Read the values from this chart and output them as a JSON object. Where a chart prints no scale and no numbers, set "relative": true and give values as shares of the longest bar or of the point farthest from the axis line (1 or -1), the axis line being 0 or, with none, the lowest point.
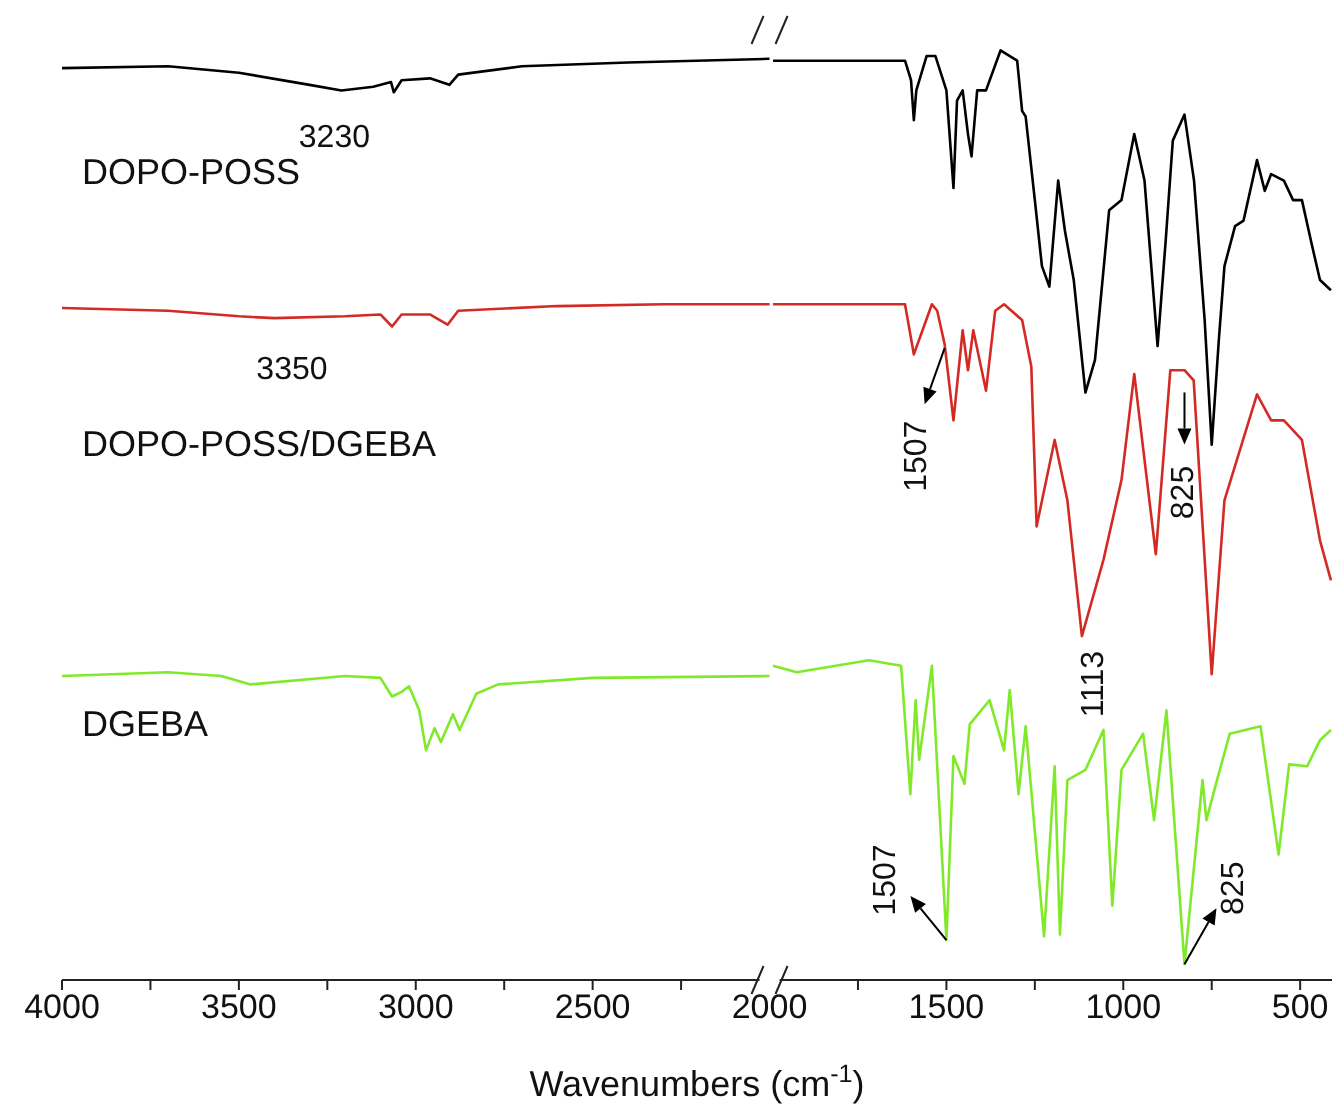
{
  "chart_data": {
    "type": "line",
    "xlabel": "Wavenumbers (cm$^{-1}$)",
    "relative": true,
    "tick_labels": "x",
    "marker": "none",
    "line_style": "solid",
    "xlim": [
      4000,
      410
    ],
    "xticks": [
      4000,
      {
        "value": 3750,
        "label": null
      },
      3500,
      {
        "value": 3250,
        "label": null
      },
      3000,
      {
        "value": 2750,
        "label": null
      },
      2500,
      {
        "value": 2250,
        "label": null
      },
      2000,
      {
        "value": 1750,
        "label": null
      },
      1500,
      {
        "value": 1250,
        "label": null
      },
      1000,
      {
        "value": 750,
        "label": null
      },
      500
    ],
    "series": [
      {
        "name": "DOPO-POSS",
        "color": "#000000",
        "x": [
          4000,
          3700,
          3500,
          3300,
          3210,
          3120,
          3070,
          3062,
          3040,
          2960,
          2905,
          2880,
          2700,
          2400,
          2000,
          1995,
          1990,
          1617,
          1600,
          1592,
          1585,
          1556,
          1531,
          1500,
          1480,
          1470,
          1454,
          1439,
          1429,
          1413,
          1388,
          1347,
          1300,
          1286,
          1276,
          1250,
          1230,
          1209,
          1184,
          1165,
          1140,
          1107,
          1080,
          1040,
          1005,
          969,
          940,
          903,
          880,
          860,
          827,
          800,
          770,
          750,
          730,
          714,
          684,
          660,
          622,
          600,
          582,
          546,
          520,
          495,
          470,
          444,
          413
        ],
        "values": [
          0.981,
          0.983,
          0.976,
          0.963,
          0.957,
          0.961,
          0.966,
          0.955,
          0.968,
          0.97,
          0.963,
          0.974,
          0.983,
          0.987,
          0.991,
          null,
          0.989,
          0.989,
          0.968,
          0.925,
          0.957,
          0.994,
          0.994,
          0.957,
          0.852,
          0.946,
          0.957,
          0.91,
          0.886,
          0.957,
          0.957,
          1.0,
          0.989,
          0.935,
          0.929,
          0.839,
          0.768,
          0.746,
          0.86,
          0.806,
          0.753,
          0.632,
          0.667,
          0.828,
          0.839,
          0.91,
          0.86,
          0.682,
          0.796,
          0.903,
          0.931,
          0.86,
          0.71,
          0.576,
          0.688,
          0.768,
          0.811,
          0.817,
          0.882,
          0.849,
          0.867,
          0.86,
          0.839,
          0.839,
          0.796,
          0.753,
          0.742
        ]
      },
      {
        "name": "DOPO-POSS/DGEBA",
        "color": "#d42a24",
        "x": [
          4000,
          3700,
          3500,
          3400,
          3200,
          3100,
          3067,
          3040,
          2960,
          2910,
          2880,
          2600,
          2300,
          2000,
          1995,
          1990,
          1617,
          1592,
          1541,
          1526,
          1505,
          1480,
          1454,
          1439,
          1424,
          1388,
          1362,
          1337,
          1286,
          1260,
          1245,
          1194,
          1158,
          1117,
          1056,
          1005,
          969,
          908,
          867,
          827,
          801,
          750,
          714,
          622,
          582,
          546,
          495,
          444,
          413
        ],
        "values": [
          0.723,
          0.72,
          0.714,
          0.712,
          0.714,
          0.716,
          0.703,
          0.716,
          0.716,
          0.705,
          0.72,
          0.725,
          0.727,
          0.727,
          null,
          0.727,
          0.727,
          0.673,
          0.727,
          0.72,
          0.684,
          0.602,
          0.699,
          0.656,
          0.699,
          0.634,
          0.72,
          0.727,
          0.71,
          0.66,
          0.488,
          0.581,
          0.516,
          0.37,
          0.452,
          0.538,
          0.652,
          0.458,
          0.656,
          0.656,
          0.645,
          0.329,
          0.516,
          0.63,
          0.602,
          0.602,
          0.581,
          0.473,
          0.43
        ]
      },
      {
        "name": "DGEBA",
        "color": "#80ea2a",
        "x": [
          4000,
          3700,
          3550,
          3467,
          3200,
          3100,
          3067,
          3040,
          3019,
          2990,
          2971,
          2947,
          2929,
          2895,
          2876,
          2829,
          2767,
          2500,
          2000,
          1995,
          1990,
          1923,
          1719,
          1628,
          1602,
          1587,
          1577,
          1541,
          1500,
          1480,
          1449,
          1434,
          1378,
          1337,
          1321,
          1296,
          1276,
          1224,
          1194,
          1179,
          1158,
          1107,
          1056,
          1031,
          1005,
          944,
          913,
          878,
          827,
          776,
          765,
          735,
          699,
          612,
          561,
          531,
          480,
          444,
          413
        ],
        "values": [
          0.327,
          0.331,
          0.327,
          0.318,
          0.327,
          0.325,
          0.305,
          0.31,
          0.316,
          0.29,
          0.247,
          0.271,
          0.256,
          0.286,
          0.269,
          0.308,
          0.318,
          0.325,
          0.327,
          null,
          0.338,
          0.331,
          0.344,
          0.338,
          0.2,
          0.301,
          0.237,
          0.338,
          0.043,
          0.241,
          0.211,
          0.275,
          0.301,
          0.247,
          0.312,
          0.2,
          0.273,
          0.047,
          0.23,
          0.049,
          0.215,
          0.226,
          0.269,
          0.08,
          0.226,
          0.265,
          0.172,
          0.29,
          0.017,
          0.215,
          0.172,
          0.215,
          0.265,
          0.273,
          0.135,
          0.232,
          0.23,
          0.258,
          0.269
        ]
      }
    ],
    "annotations": [
      {
        "text": "3230",
        "x": 3230,
        "y": 0.957
      },
      {
        "text": "3350",
        "x": 3350,
        "y": 0.712
      },
      {
        "text": "1507",
        "x": 1505,
        "y": 0.684
      },
      {
        "text": "1113",
        "x": 1117,
        "y": 0.37
      },
      {
        "text": "825",
        "x": 827,
        "y": 0.645
      },
      {
        "text": "1507",
        "x": 1500,
        "y": 0.043
      },
      {
        "text": "825",
        "x": 827,
        "y": 0.017
      }
    ]
  }
}
